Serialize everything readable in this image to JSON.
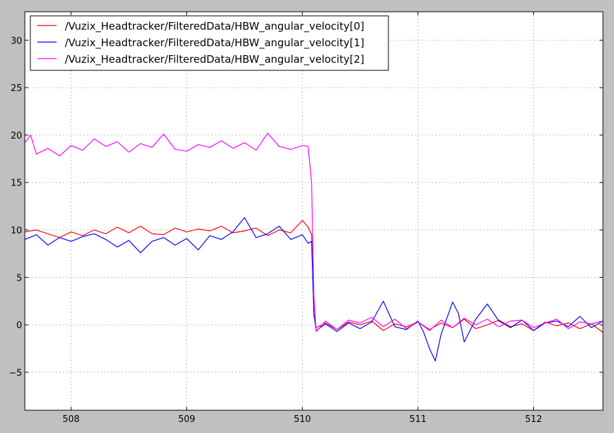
{
  "chart_data": {
    "type": "line",
    "xlim": [
      507.6,
      512.6
    ],
    "ylim": [
      -9,
      33
    ],
    "xticks": [
      508,
      509,
      510,
      511,
      512
    ],
    "yticks": [
      -5,
      0,
      5,
      10,
      15,
      20,
      25,
      30
    ],
    "xtick_labels": [
      "508",
      "509",
      "510",
      "511",
      "512"
    ],
    "ytick_labels": [
      "−5",
      "0",
      "5",
      "10",
      "15",
      "20",
      "25",
      "30"
    ],
    "grid": true,
    "legend_position": "top-left",
    "series": [
      {
        "name": "/Vuzix_Headtracker/FilteredData/HBW_angular_velocity[0]",
        "color": "#ff0000",
        "x": [
          507.6,
          507.7,
          507.8,
          507.9,
          508.0,
          508.1,
          508.2,
          508.3,
          508.4,
          508.5,
          508.6,
          508.7,
          508.8,
          508.9,
          509.0,
          509.1,
          509.2,
          509.3,
          509.4,
          509.5,
          509.6,
          509.7,
          509.8,
          509.9,
          510.0,
          510.05,
          510.08,
          510.1,
          510.12,
          510.2,
          510.3,
          510.4,
          510.5,
          510.6,
          510.7,
          510.8,
          510.9,
          511.0,
          511.1,
          511.2,
          511.3,
          511.4,
          511.5,
          511.6,
          511.7,
          511.8,
          511.9,
          512.0,
          512.1,
          512.2,
          512.3,
          512.4,
          512.5,
          512.6
        ],
        "y": [
          9.8,
          10.0,
          9.6,
          9.2,
          9.8,
          9.4,
          10.0,
          9.6,
          10.3,
          9.7,
          10.4,
          9.6,
          9.5,
          10.2,
          9.8,
          10.1,
          9.9,
          10.4,
          9.7,
          9.9,
          10.2,
          9.4,
          10.0,
          9.7,
          11.0,
          10.3,
          9.5,
          1.0,
          -0.3,
          0.2,
          -0.5,
          0.3,
          0.0,
          0.4,
          -0.6,
          0.1,
          -0.2,
          0.3,
          -0.5,
          0.2,
          -0.3,
          0.6,
          -0.4,
          0.0,
          0.5,
          -0.2,
          0.1,
          -0.6,
          0.3,
          -0.1,
          0.2,
          -0.4,
          0.1,
          -0.8
        ]
      },
      {
        "name": "/Vuzix_Headtracker/FilteredData/HBW_angular_velocity[1]",
        "color": "#0000ff",
        "x": [
          507.6,
          507.7,
          507.8,
          507.9,
          508.0,
          508.1,
          508.2,
          508.3,
          508.4,
          508.5,
          508.6,
          508.7,
          508.8,
          508.9,
          509.0,
          509.1,
          509.2,
          509.3,
          509.4,
          509.5,
          509.6,
          509.7,
          509.8,
          509.9,
          510.0,
          510.05,
          510.08,
          510.1,
          510.12,
          510.2,
          510.3,
          510.4,
          510.5,
          510.6,
          510.7,
          510.8,
          510.9,
          511.0,
          511.05,
          511.1,
          511.15,
          511.2,
          511.3,
          511.35,
          511.4,
          511.5,
          511.6,
          511.7,
          511.8,
          511.9,
          512.0,
          512.1,
          512.2,
          512.3,
          512.4,
          512.5,
          512.6
        ],
        "y": [
          9.0,
          9.5,
          8.4,
          9.2,
          8.8,
          9.3,
          9.6,
          9.0,
          8.2,
          8.9,
          7.6,
          8.8,
          9.2,
          8.4,
          9.1,
          7.9,
          9.4,
          9.0,
          9.8,
          11.3,
          9.2,
          9.6,
          10.4,
          9.0,
          9.5,
          8.6,
          8.8,
          1.2,
          -0.6,
          0.1,
          -0.7,
          0.2,
          -0.4,
          0.3,
          2.5,
          -0.2,
          -0.5,
          0.4,
          -0.8,
          -2.5,
          -3.8,
          -1.0,
          2.4,
          1.2,
          -1.8,
          0.6,
          2.2,
          0.4,
          -0.3,
          0.5,
          -0.6,
          0.2,
          0.4,
          -0.2,
          0.9,
          -0.3,
          0.4
        ]
      },
      {
        "name": "/Vuzix_Headtracker/FilteredData/HBW_angular_velocity[2]",
        "color": "#ff00ff",
        "x": [
          507.6,
          507.65,
          507.7,
          507.8,
          507.9,
          508.0,
          508.1,
          508.2,
          508.3,
          508.4,
          508.5,
          508.6,
          508.7,
          508.8,
          508.9,
          509.0,
          509.1,
          509.2,
          509.3,
          509.4,
          509.5,
          509.6,
          509.7,
          509.8,
          509.9,
          510.0,
          510.05,
          510.08,
          510.1,
          510.12,
          510.15,
          510.2,
          510.3,
          510.4,
          510.5,
          510.6,
          510.7,
          510.8,
          510.9,
          511.0,
          511.1,
          511.2,
          511.3,
          511.4,
          511.5,
          511.6,
          511.7,
          511.8,
          511.9,
          512.0,
          512.1,
          512.2,
          512.3,
          512.4,
          512.5,
          512.6
        ],
        "y": [
          19.2,
          20.0,
          18.0,
          18.6,
          17.8,
          18.9,
          18.4,
          19.6,
          18.8,
          19.3,
          18.2,
          19.1,
          18.7,
          20.1,
          18.5,
          18.3,
          19.0,
          18.7,
          19.4,
          18.6,
          19.2,
          18.4,
          20.2,
          18.8,
          18.5,
          18.9,
          18.8,
          15.0,
          3.0,
          -0.7,
          -0.3,
          0.4,
          -0.5,
          0.5,
          0.2,
          0.8,
          -0.2,
          0.6,
          -0.4,
          0.3,
          -0.6,
          0.5,
          -0.3,
          0.7,
          0.0,
          0.6,
          -0.2,
          0.4,
          0.5,
          -0.3,
          0.2,
          0.6,
          -0.4,
          0.3,
          0.1,
          0.4
        ]
      }
    ]
  }
}
